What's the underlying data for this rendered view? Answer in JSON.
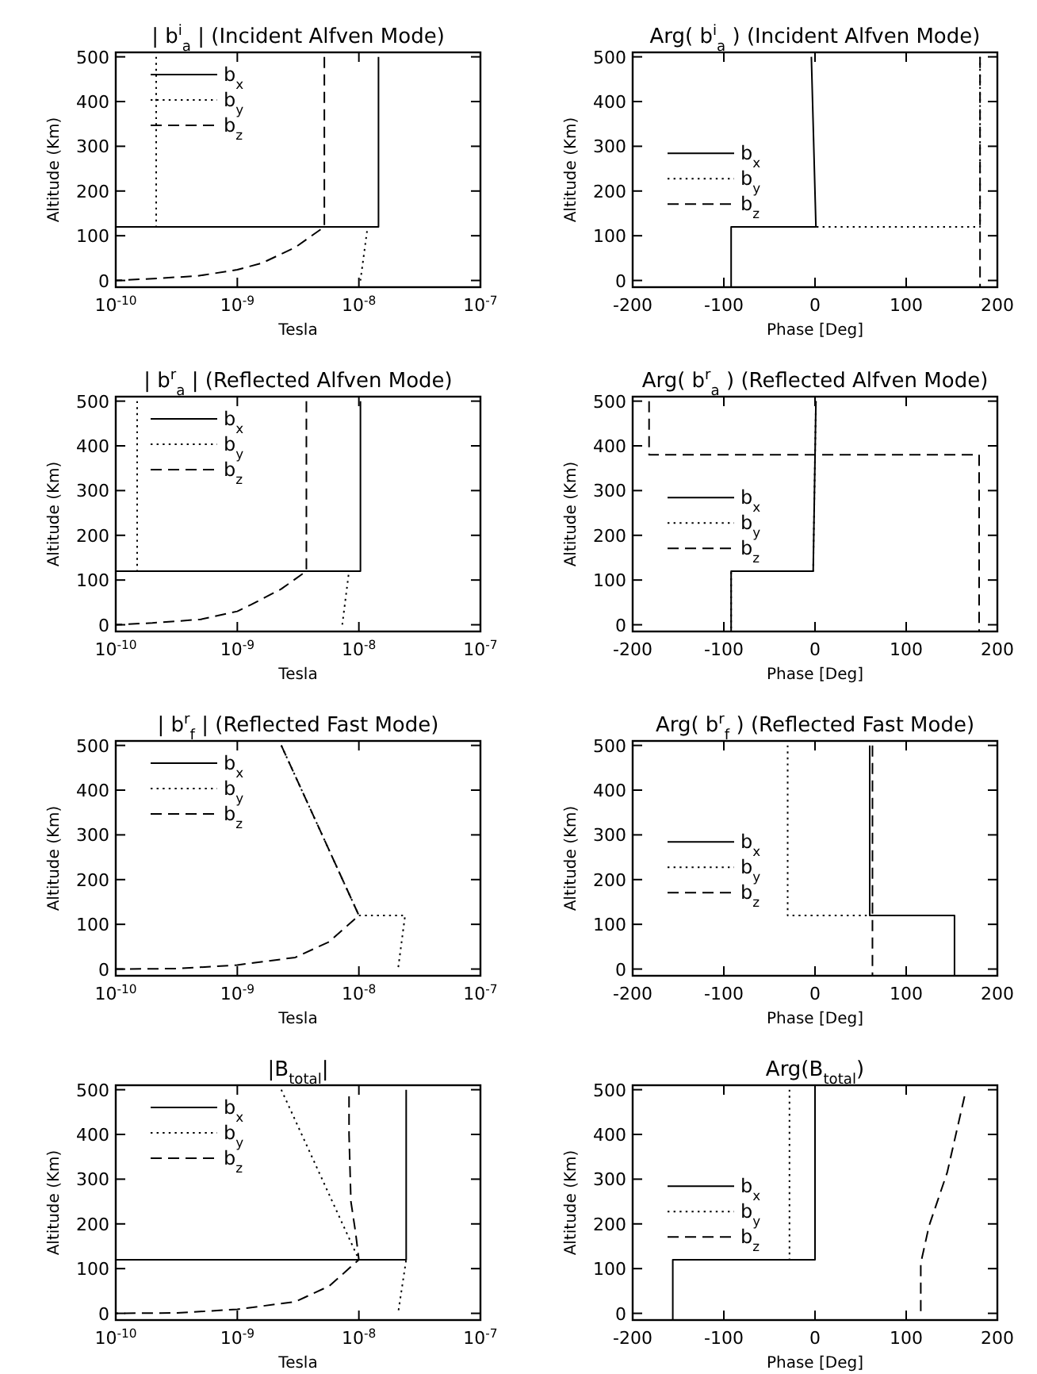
{
  "chart_data": [
    {
      "type": "line",
      "title": "| b$^{i}$$_{a}$ | (Incident Alfven Mode)",
      "xlabel": "Tesla",
      "ylabel": "Altitude (Km)",
      "log": "x",
      "xlim": [
        1e-10,
        1e-07
      ],
      "xticks": [
        {
          "value": 1e-10,
          "label": "10$^{-10}$"
        },
        {
          "value": 1e-09,
          "label": "10$^{-9}$"
        },
        {
          "value": 1e-08,
          "label": "10$^{-8}$"
        },
        {
          "value": 1e-07,
          "label": "10$^{-7}$"
        }
      ],
      "ylim": [
        -15,
        510
      ],
      "yticks": [
        0,
        100,
        200,
        300,
        400,
        500
      ],
      "legend": "top left",
      "series": [
        {
          "name": "b$_{x}$",
          "color": "#000000",
          "line_style": "solid",
          "x": [
            1.45e-08,
            1.45e-08,
            1e-10
          ],
          "values": [
            500,
            120,
            120
          ]
        },
        {
          "name": "b$_{y}$",
          "color": "#000000",
          "line_style": "dotted",
          "x": [
            2.15e-10,
            2.15e-10,
            1.18e-08,
            1.03e-08
          ],
          "values": [
            500,
            120,
            120,
            0
          ]
        },
        {
          "name": "b$_{z}$",
          "color": "#000000",
          "line_style": "dashed",
          "x": [
            5.2e-09,
            5.2e-09,
            3e-09,
            1.6e-09,
            1e-09,
            4.7e-10,
            1.7e-10,
            1e-10
          ],
          "values": [
            500,
            120,
            74,
            39,
            24,
            10,
            3,
            0
          ]
        }
      ]
    },
    {
      "type": "line",
      "title": "Arg( b$^{i}$$_{a}$ ) (Incident Alfven Mode)",
      "xlabel": "Phase [Deg]",
      "ylabel": "Altitude (Km)",
      "xlim": [
        -200,
        200
      ],
      "xticks": [
        -200,
        -100,
        0,
        100,
        200
      ],
      "ylim": [
        -15,
        510
      ],
      "yticks": [
        0,
        100,
        200,
        300,
        400,
        500
      ],
      "legend": "left",
      "series": [
        {
          "name": "b$_{x}$",
          "color": "#000000",
          "line_style": "solid",
          "x": [
            -4,
            1,
            -92,
            -92
          ],
          "values": [
            500,
            120,
            120,
            -15
          ]
        },
        {
          "name": "b$_{y}$",
          "color": "#000000",
          "line_style": "dotted",
          "x": [
            181,
            181,
            1
          ],
          "values": [
            500,
            120,
            120
          ]
        },
        {
          "name": "b$_{z}$",
          "color": "#000000",
          "line_style": "dashed",
          "x": [
            181,
            181
          ],
          "values": [
            500,
            -15
          ]
        }
      ]
    },
    {
      "type": "line",
      "title": "| b$^{r}$$_{a}$ | (Reflected Alfven Mode)",
      "xlabel": "Tesla",
      "ylabel": "Altitude (Km)",
      "log": "x",
      "xlim": [
        1e-10,
        1e-07
      ],
      "xticks": [
        {
          "value": 1e-10,
          "label": "10$^{-10}$"
        },
        {
          "value": 1e-09,
          "label": "10$^{-9}$"
        },
        {
          "value": 1e-08,
          "label": "10$^{-8}$"
        },
        {
          "value": 1e-07,
          "label": "10$^{-7}$"
        }
      ],
      "ylim": [
        -15,
        510
      ],
      "yticks": [
        0,
        100,
        200,
        300,
        400,
        500
      ],
      "legend": "top left",
      "series": [
        {
          "name": "b$_{x}$",
          "color": "#000000",
          "line_style": "solid",
          "x": [
            1.03e-08,
            1.03e-08,
            1e-10
          ],
          "values": [
            500,
            120,
            120
          ]
        },
        {
          "name": "b$_{y}$",
          "color": "#000000",
          "line_style": "dotted",
          "x": [
            1.5e-10,
            1.5e-10,
            8.3e-09,
            7.3e-09
          ],
          "values": [
            500,
            120,
            120,
            0
          ]
        },
        {
          "name": "b$_{z}$",
          "color": "#000000",
          "line_style": "dashed",
          "x": [
            3.7e-09,
            3.7e-09,
            2.3e-09,
            1.3e-09,
            1e-09,
            5e-10,
            2e-10,
            1e-10
          ],
          "values": [
            500,
            120,
            80,
            45,
            30,
            12,
            4,
            0
          ]
        }
      ]
    },
    {
      "type": "line",
      "title": "Arg( b$^{r}$$_{a}$ ) (Reflected Alfven Mode)",
      "xlabel": "Phase [Deg]",
      "ylabel": "Altitude (Km)",
      "xlim": [
        -200,
        200
      ],
      "xticks": [
        -200,
        -100,
        0,
        100,
        200
      ],
      "ylim": [
        -15,
        510
      ],
      "yticks": [
        0,
        100,
        200,
        300,
        400,
        500
      ],
      "legend": "left",
      "series": [
        {
          "name": "b$_{x}$",
          "color": "#000000",
          "line_style": "solid",
          "x": [
            1,
            -2,
            -92,
            -92
          ],
          "values": [
            500,
            120,
            120,
            -15
          ]
        },
        {
          "name": "b$_{y}$",
          "color": "#000000",
          "line_style": "dotted",
          "x": [
            1,
            -2,
            -92,
            -92
          ],
          "values": [
            500,
            120,
            120,
            -15
          ]
        },
        {
          "name": "b$_{z}$",
          "color": "#000000",
          "line_style": "dashed",
          "x": [
            -182,
            -182,
            180,
            180
          ],
          "values": [
            500,
            380,
            380,
            -15
          ]
        }
      ]
    },
    {
      "type": "line",
      "title": "| b$^{r}$$_{f}$ | (Reflected Fast Mode)",
      "xlabel": "Tesla",
      "ylabel": "Altitude (Km)",
      "log": "x",
      "xlim": [
        1e-10,
        1e-07
      ],
      "xticks": [
        {
          "value": 1e-10,
          "label": "10$^{-10}$"
        },
        {
          "value": 1e-09,
          "label": "10$^{-9}$"
        },
        {
          "value": 1e-08,
          "label": "10$^{-8}$"
        },
        {
          "value": 1e-07,
          "label": "10$^{-7}$"
        }
      ],
      "ylim": [
        -15,
        510
      ],
      "yticks": [
        0,
        100,
        200,
        300,
        400,
        500
      ],
      "legend": "top left",
      "series": [
        {
          "name": "b$_{x}$",
          "color": "#000000",
          "line_style": "solid"
        },
        {
          "name": "b$_{y}$",
          "color": "#000000",
          "line_style": "dotted",
          "x": [
            2.3e-09,
            1e-08,
            2.4e-08,
            2.1e-08
          ],
          "values": [
            500,
            120,
            120,
            0
          ]
        },
        {
          "name": "b$_{z}$",
          "color": "#000000",
          "line_style": "dashed",
          "x": [
            2.3e-09,
            1e-08,
            5.7e-09,
            3e-09,
            1e-09,
            3.2e-10,
            1e-10
          ],
          "values": [
            500,
            120,
            61,
            26,
            9,
            1,
            0
          ]
        }
      ]
    },
    {
      "type": "line",
      "title": "Arg( b$^{r}$$_{f}$ ) (Reflected Fast Mode)",
      "xlabel": "Phase [Deg]",
      "ylabel": "Altitude (Km)",
      "xlim": [
        -200,
        200
      ],
      "xticks": [
        -200,
        -100,
        0,
        100,
        200
      ],
      "ylim": [
        -15,
        510
      ],
      "yticks": [
        0,
        100,
        200,
        300,
        400,
        500
      ],
      "legend": "left",
      "series": [
        {
          "name": "b$_{x}$",
          "color": "#000000",
          "line_style": "solid",
          "x": [
            60,
            60,
            153,
            153
          ],
          "values": [
            500,
            120,
            120,
            -15
          ]
        },
        {
          "name": "b$_{y}$",
          "color": "#000000",
          "line_style": "dotted",
          "x": [
            -30,
            -30,
            60
          ],
          "values": [
            500,
            120,
            120
          ]
        },
        {
          "name": "b$_{z}$",
          "color": "#000000",
          "line_style": "dashed",
          "x": [
            63,
            63
          ],
          "values": [
            500,
            -15
          ]
        }
      ]
    },
    {
      "type": "line",
      "title": "|B$_{total}$|",
      "xlabel": "Tesla",
      "ylabel": "Altitude (Km)",
      "log": "x",
      "xlim": [
        1e-10,
        1e-07
      ],
      "xticks": [
        {
          "value": 1e-10,
          "label": "10$^{-10}$"
        },
        {
          "value": 1e-09,
          "label": "10$^{-9}$"
        },
        {
          "value": 1e-08,
          "label": "10$^{-8}$"
        },
        {
          "value": 1e-07,
          "label": "10$^{-7}$"
        }
      ],
      "ylim": [
        -15,
        510
      ],
      "yticks": [
        0,
        100,
        200,
        300,
        400,
        500
      ],
      "legend": "top left",
      "series": [
        {
          "name": "b$_{x}$",
          "color": "#000000",
          "line_style": "solid",
          "x": [
            2.45e-08,
            2.45e-08,
            1e-10
          ],
          "values": [
            500,
            120,
            120
          ]
        },
        {
          "name": "b$_{y}$",
          "color": "#000000",
          "line_style": "dotted",
          "x": [
            2.3e-09,
            1e-08,
            2.45e-08,
            2.1e-08
          ],
          "values": [
            500,
            120,
            120,
            0
          ]
        },
        {
          "name": "b$_{z}$",
          "color": "#000000",
          "line_style": "dashed",
          "x": [
            8.3e-09,
            8.3e-09,
            8.6e-09,
            9.4e-09,
            1e-08,
            5.7e-09,
            3e-09,
            1e-09,
            3.2e-10,
            1e-10
          ],
          "values": [
            485,
            400,
            250,
            180,
            120,
            61,
            26,
            9,
            1,
            0
          ]
        }
      ]
    },
    {
      "type": "line",
      "title": "Arg(B$_{total}$)",
      "xlabel": "Phase [Deg]",
      "ylabel": "Altitude (Km)",
      "xlim": [
        -200,
        200
      ],
      "xticks": [
        -200,
        -100,
        0,
        100,
        200
      ],
      "ylim": [
        -15,
        510
      ],
      "yticks": [
        0,
        100,
        200,
        300,
        400,
        500
      ],
      "legend": "left",
      "series": [
        {
          "name": "b$_{x}$",
          "color": "#000000",
          "line_style": "solid",
          "x": [
            0,
            0,
            -156,
            -156
          ],
          "values": [
            500,
            120,
            120,
            -15
          ]
        },
        {
          "name": "b$_{y}$",
          "color": "#000000",
          "line_style": "dotted",
          "x": [
            -28,
            -28,
            0
          ],
          "values": [
            500,
            120,
            120
          ]
        },
        {
          "name": "b$_{z}$",
          "color": "#000000",
          "line_style": "dashed",
          "x": [
            164,
            145,
            125,
            116,
            116
          ],
          "values": [
            485,
            315,
            195,
            112,
            0
          ]
        }
      ]
    }
  ]
}
